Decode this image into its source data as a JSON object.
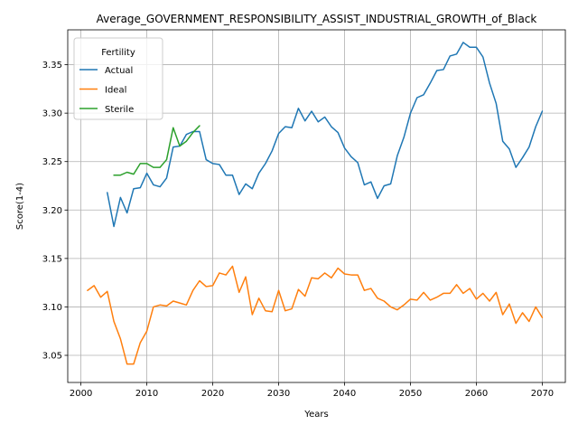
{
  "chart_data": {
    "type": "line",
    "title": "Average_GOVERNMENT_RESPONSIBILITY_ASSIST_INDUSTRIAL_GROWTH_of_Black",
    "xlabel": "Years",
    "ylabel": "Score(1-4)",
    "xlim": [
      1998,
      2073.5
    ],
    "ylim": [
      3.022,
      3.386
    ],
    "x_ticks": [
      2000,
      2010,
      2020,
      2030,
      2040,
      2050,
      2060,
      2070
    ],
    "y_ticks": [
      3.05,
      3.1,
      3.15,
      3.2,
      3.25,
      3.3,
      3.35
    ],
    "grid": true,
    "legend": {
      "title": "Fertility",
      "position": "upper-left"
    },
    "series": [
      {
        "name": "Actual",
        "color": "#1f77b4",
        "x": [
          2004,
          2005,
          2006,
          2007,
          2008,
          2009,
          2010,
          2011,
          2012,
          2013,
          2014,
          2015,
          2016,
          2017,
          2018,
          2019,
          2020,
          2021,
          2022,
          2023,
          2024,
          2025,
          2026,
          2027,
          2028,
          2029,
          2030,
          2031,
          2032,
          2033,
          2034,
          2035,
          2036,
          2037,
          2038,
          2039,
          2040,
          2041,
          2042,
          2043,
          2044,
          2045,
          2046,
          2047,
          2048,
          2049,
          2050,
          2051,
          2052,
          2053,
          2054,
          2055,
          2056,
          2057,
          2058,
          2059,
          2060,
          2061,
          2062,
          2063,
          2064,
          2065,
          2066,
          2067,
          2068,
          2069,
          2070
        ],
        "y": [
          3.218,
          3.183,
          3.213,
          3.197,
          3.222,
          3.223,
          3.238,
          3.226,
          3.224,
          3.233,
          3.265,
          3.266,
          3.278,
          3.281,
          3.281,
          3.252,
          3.248,
          3.247,
          3.236,
          3.236,
          3.216,
          3.227,
          3.222,
          3.238,
          3.248,
          3.261,
          3.279,
          3.286,
          3.285,
          3.305,
          3.292,
          3.302,
          3.291,
          3.296,
          3.286,
          3.28,
          3.264,
          3.255,
          3.249,
          3.226,
          3.229,
          3.212,
          3.225,
          3.227,
          3.256,
          3.275,
          3.3,
          3.316,
          3.319,
          3.331,
          3.344,
          3.345,
          3.359,
          3.361,
          3.373,
          3.368,
          3.368,
          3.358,
          3.331,
          3.31,
          3.271,
          3.263,
          3.244,
          3.254,
          3.265,
          3.286,
          3.302
        ]
      },
      {
        "name": "Ideal",
        "color": "#ff7f0e",
        "x": [
          2001,
          2002,
          2003,
          2004,
          2005,
          2006,
          2007,
          2008,
          2009,
          2010,
          2011,
          2012,
          2013,
          2014,
          2015,
          2016,
          2017,
          2018,
          2019,
          2020,
          2021,
          2022,
          2023,
          2024,
          2025,
          2026,
          2027,
          2028,
          2029,
          2030,
          2031,
          2032,
          2033,
          2034,
          2035,
          2036,
          2037,
          2038,
          2039,
          2040,
          2041,
          2042,
          2043,
          2044,
          2045,
          2046,
          2047,
          2048,
          2049,
          2050,
          2051,
          2052,
          2053,
          2054,
          2055,
          2056,
          2057,
          2058,
          2059,
          2060,
          2061,
          2062,
          2063,
          2064,
          2065,
          2066,
          2067,
          2068,
          2069,
          2070
        ],
        "y": [
          3.117,
          3.122,
          3.11,
          3.116,
          3.085,
          3.067,
          3.041,
          3.041,
          3.063,
          3.075,
          3.1,
          3.102,
          3.101,
          3.106,
          3.104,
          3.102,
          3.117,
          3.127,
          3.121,
          3.122,
          3.135,
          3.133,
          3.142,
          3.115,
          3.131,
          3.092,
          3.109,
          3.096,
          3.095,
          3.117,
          3.096,
          3.098,
          3.118,
          3.111,
          3.13,
          3.129,
          3.135,
          3.13,
          3.14,
          3.134,
          3.133,
          3.133,
          3.117,
          3.119,
          3.109,
          3.106,
          3.1,
          3.097,
          3.102,
          3.108,
          3.107,
          3.115,
          3.107,
          3.11,
          3.114,
          3.114,
          3.123,
          3.114,
          3.119,
          3.108,
          3.114,
          3.106,
          3.115,
          3.092,
          3.103,
          3.083,
          3.094,
          3.085,
          3.1,
          3.089
        ]
      },
      {
        "name": "Sterile",
        "color": "#2ca02c",
        "x": [
          2005,
          2006,
          2007,
          2008,
          2009,
          2010,
          2011,
          2012,
          2013,
          2014,
          2015,
          2016,
          2017,
          2018
        ],
        "y": [
          3.236,
          3.236,
          3.239,
          3.237,
          3.248,
          3.248,
          3.244,
          3.244,
          3.252,
          3.285,
          3.266,
          3.271,
          3.28,
          3.287
        ]
      }
    ]
  }
}
